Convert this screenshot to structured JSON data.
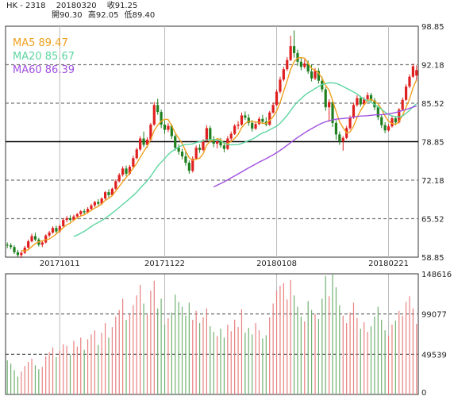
{
  "header": {
    "symbol": "HK - 2318",
    "date": "20180320",
    "close_label": "收91.25",
    "open_label": "開90.30",
    "high_label": "高92.05",
    "low_label": "低89.40"
  },
  "chart_data": [
    {
      "type": "candlestick",
      "title": "",
      "legend": [
        {
          "name": "MA5",
          "value": "89.47",
          "color": "#f0a020"
        },
        {
          "name": "MA20",
          "value": "85.67",
          "color": "#5dd5a0"
        },
        {
          "name": "MA60",
          "value": "86.39",
          "color": "#a050e0"
        }
      ],
      "y_ticks": [
        "98.85",
        "92.18",
        "85.52",
        "78.85",
        "72.18",
        "65.52",
        "58.85"
      ],
      "ylim": [
        58.85,
        98.85
      ],
      "x_ticks": [
        "20171011",
        "20171122",
        "20180108",
        "20180221"
      ],
      "x_tick_index": [
        15,
        45,
        77,
        109
      ],
      "grid": "dashed-horizontal",
      "reference_line": 78.85,
      "colors": {
        "up": "#e02020",
        "down": "#208020",
        "ma5": "#f0a020",
        "ma20": "#5dd5a0",
        "ma60": "#a050e0"
      },
      "candles": [
        [
          61.0,
          61.4,
          60.4,
          60.9
        ],
        [
          60.9,
          61.3,
          60.2,
          60.6
        ],
        [
          60.6,
          60.9,
          59.4,
          59.7
        ],
        [
          59.7,
          60.1,
          58.9,
          59.2
        ],
        [
          59.2,
          59.9,
          58.7,
          59.6
        ],
        [
          59.6,
          60.8,
          59.4,
          60.5
        ],
        [
          60.5,
          61.9,
          60.3,
          61.6
        ],
        [
          61.6,
          62.9,
          61.4,
          62.5
        ],
        [
          62.5,
          63.1,
          61.6,
          61.9
        ],
        [
          61.9,
          62.2,
          60.7,
          61.0
        ],
        [
          61.0,
          61.7,
          60.6,
          61.4
        ],
        [
          61.4,
          62.8,
          61.2,
          62.6
        ],
        [
          62.6,
          63.4,
          62.3,
          63.1
        ],
        [
          63.1,
          64.2,
          62.9,
          63.9
        ],
        [
          63.9,
          64.3,
          63.0,
          63.3
        ],
        [
          63.3,
          64.5,
          63.1,
          64.2
        ],
        [
          64.2,
          65.6,
          64.0,
          65.3
        ],
        [
          65.3,
          66.0,
          64.9,
          65.6
        ],
        [
          65.6,
          66.1,
          65.0,
          65.3
        ],
        [
          65.3,
          66.2,
          65.1,
          65.9
        ],
        [
          65.9,
          66.5,
          65.5,
          66.3
        ],
        [
          66.3,
          67.0,
          65.9,
          66.8
        ],
        [
          66.8,
          67.2,
          66.3,
          66.6
        ],
        [
          66.6,
          67.5,
          66.4,
          67.2
        ],
        [
          67.2,
          68.1,
          67.0,
          67.8
        ],
        [
          67.8,
          68.6,
          67.5,
          68.4
        ],
        [
          68.4,
          68.9,
          67.8,
          68.1
        ],
        [
          68.1,
          69.2,
          67.9,
          69.0
        ],
        [
          69.0,
          70.3,
          68.8,
          70.1
        ],
        [
          70.1,
          70.6,
          69.2,
          69.6
        ],
        [
          69.6,
          70.9,
          69.4,
          70.7
        ],
        [
          70.7,
          72.3,
          70.5,
          72.0
        ],
        [
          72.0,
          73.4,
          71.8,
          73.1
        ],
        [
          73.1,
          74.6,
          72.8,
          74.2
        ],
        [
          74.2,
          74.7,
          72.9,
          73.3
        ],
        [
          73.3,
          74.8,
          73.1,
          74.5
        ],
        [
          74.5,
          76.4,
          74.3,
          76.0
        ],
        [
          76.0,
          77.8,
          75.8,
          77.5
        ],
        [
          77.5,
          79.8,
          77.2,
          79.4
        ],
        [
          79.4,
          80.6,
          77.9,
          78.3
        ],
        [
          78.3,
          79.6,
          77.8,
          79.2
        ],
        [
          79.2,
          82.1,
          79.0,
          81.8
        ],
        [
          81.8,
          85.7,
          81.6,
          85.2
        ],
        [
          85.2,
          86.3,
          83.5,
          84.0
        ],
        [
          84.0,
          84.4,
          81.2,
          81.8
        ],
        [
          81.8,
          82.5,
          80.2,
          80.9
        ],
        [
          80.9,
          82.1,
          80.5,
          81.6
        ],
        [
          81.6,
          81.9,
          79.3,
          79.8
        ],
        [
          79.8,
          80.1,
          77.3,
          77.8
        ],
        [
          77.8,
          78.4,
          76.6,
          77.1
        ],
        [
          77.1,
          77.6,
          75.8,
          76.3
        ],
        [
          76.3,
          77.2,
          74.7,
          75.2
        ],
        [
          75.2,
          75.6,
          73.3,
          73.8
        ],
        [
          73.8,
          76.3,
          73.5,
          75.9
        ],
        [
          75.9,
          78.2,
          75.7,
          77.8
        ],
        [
          77.8,
          78.4,
          76.9,
          77.4
        ],
        [
          77.4,
          79.3,
          77.2,
          78.9
        ],
        [
          78.9,
          81.7,
          78.7,
          81.2
        ],
        [
          81.2,
          81.6,
          78.8,
          79.3
        ],
        [
          79.3,
          79.8,
          77.9,
          78.5
        ],
        [
          78.5,
          79.4,
          77.7,
          78.9
        ],
        [
          78.9,
          79.5,
          77.8,
          78.2
        ],
        [
          78.2,
          78.7,
          77.0,
          77.6
        ],
        [
          77.6,
          79.8,
          77.4,
          79.4
        ],
        [
          79.4,
          80.6,
          79.0,
          80.2
        ],
        [
          80.2,
          81.9,
          80.0,
          81.6
        ],
        [
          81.6,
          82.4,
          81.0,
          81.8
        ],
        [
          81.8,
          83.9,
          81.6,
          83.4
        ],
        [
          83.4,
          84.1,
          82.6,
          83.0
        ],
        [
          83.0,
          83.6,
          81.6,
          82.1
        ],
        [
          82.1,
          82.6,
          80.6,
          81.1
        ],
        [
          81.1,
          82.3,
          80.9,
          81.9
        ],
        [
          81.9,
          83.2,
          81.7,
          82.8
        ],
        [
          82.8,
          83.5,
          81.9,
          82.3
        ],
        [
          82.3,
          83.1,
          81.5,
          81.8
        ],
        [
          81.8,
          84.2,
          81.6,
          83.9
        ],
        [
          83.9,
          85.6,
          83.7,
          85.2
        ],
        [
          85.2,
          87.9,
          85.0,
          87.5
        ],
        [
          87.5,
          90.1,
          87.2,
          89.6
        ],
        [
          89.6,
          91.8,
          89.3,
          91.4
        ],
        [
          91.4,
          93.5,
          91.1,
          93.0
        ],
        [
          93.0,
          97.2,
          92.8,
          95.4
        ],
        [
          95.4,
          98.1,
          93.4,
          94.2
        ],
        [
          94.2,
          94.8,
          92.0,
          92.7
        ],
        [
          92.7,
          93.4,
          91.2,
          91.8
        ],
        [
          91.8,
          93.1,
          91.5,
          92.4
        ],
        [
          92.4,
          92.9,
          90.6,
          91.0
        ],
        [
          91.0,
          92.2,
          89.3,
          89.8
        ],
        [
          89.8,
          91.6,
          89.5,
          91.1
        ],
        [
          91.1,
          91.6,
          88.9,
          89.4
        ],
        [
          89.4,
          90.1,
          87.4,
          87.9
        ],
        [
          87.9,
          88.3,
          84.2,
          84.8
        ],
        [
          84.8,
          86.2,
          82.3,
          85.7
        ],
        [
          85.7,
          86.1,
          81.4,
          82.1
        ],
        [
          82.1,
          82.6,
          79.2,
          80.1
        ],
        [
          80.1,
          80.6,
          78.3,
          78.9
        ],
        [
          78.9,
          79.8,
          77.3,
          79.5
        ],
        [
          79.5,
          81.6,
          79.3,
          81.2
        ],
        [
          81.2,
          83.4,
          80.9,
          83.0
        ],
        [
          83.0,
          85.6,
          82.8,
          85.2
        ],
        [
          85.2,
          86.9,
          84.9,
          86.4
        ],
        [
          86.4,
          86.8,
          84.9,
          85.3
        ],
        [
          85.3,
          86.6,
          85.1,
          86.2
        ],
        [
          86.2,
          87.4,
          85.8,
          86.9
        ],
        [
          86.9,
          87.3,
          85.6,
          86.0
        ],
        [
          86.0,
          86.4,
          84.3,
          84.8
        ],
        [
          84.8,
          85.1,
          82.6,
          83.1
        ],
        [
          83.1,
          83.6,
          81.2,
          81.7
        ],
        [
          81.7,
          82.2,
          80.3,
          80.8
        ],
        [
          80.8,
          81.9,
          80.6,
          81.5
        ],
        [
          81.5,
          83.3,
          81.3,
          82.9
        ],
        [
          82.9,
          83.3,
          81.7,
          82.2
        ],
        [
          82.2,
          84.7,
          82.0,
          84.4
        ],
        [
          84.4,
          86.5,
          84.2,
          86.1
        ],
        [
          86.1,
          88.8,
          85.9,
          88.4
        ],
        [
          88.4,
          90.5,
          88.1,
          90.1
        ],
        [
          90.1,
          92.4,
          89.9,
          91.9
        ],
        [
          90.3,
          92.05,
          89.4,
          91.25
        ]
      ]
    },
    {
      "type": "bar",
      "title": "",
      "y_ticks": [
        "148616",
        "99077",
        "49539",
        "0"
      ],
      "ylim": [
        0,
        148616
      ],
      "reference_line": 99077,
      "volume": [
        42000,
        38000,
        30000,
        22000,
        28000,
        35000,
        40000,
        44000,
        36000,
        31000,
        34000,
        47000,
        52000,
        58000,
        46000,
        54000,
        62000,
        60000,
        49000,
        66000,
        59000,
        70000,
        55000,
        68000,
        74000,
        79000,
        61000,
        76000,
        88000,
        70000,
        83000,
        96000,
        104000,
        118000,
        92000,
        99000,
        110000,
        122000,
        135000,
        112000,
        98000,
        128000,
        140000,
        106000,
        118000,
        86000,
        94000,
        101000,
        123000,
        114000,
        108000,
        97000,
        113000,
        92000,
        103000,
        88000,
        95000,
        106000,
        84000,
        77000,
        72000,
        81000,
        70000,
        86000,
        78000,
        92000,
        83000,
        105000,
        76000,
        82000,
        74000,
        88000,
        79000,
        69000,
        73000,
        95000,
        112000,
        128000,
        134000,
        137000,
        117000,
        141000,
        122000,
        108000,
        96000,
        90000,
        115000,
        104000,
        99000,
        93000,
        118000,
        146000,
        121000,
        148616,
        132000,
        110000,
        97000,
        88000,
        101000,
        113000,
        94000,
        81000,
        89000,
        77000,
        84000,
        96000,
        108000,
        92000,
        79000,
        72000,
        86000,
        91000,
        103000,
        97000,
        114000,
        121000,
        106000,
        87000
      ]
    }
  ]
}
